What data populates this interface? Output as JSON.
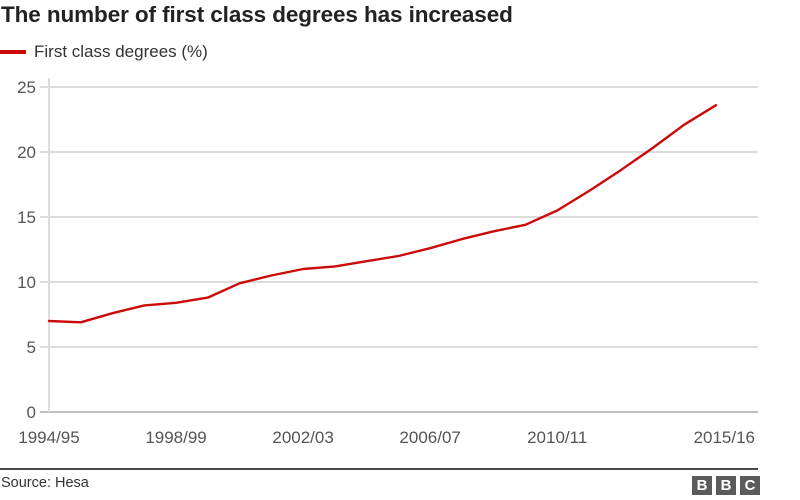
{
  "header": {
    "title": "The number of first class degrees has increased"
  },
  "legend": {
    "label": "First class degrees (%)",
    "color": "#cc0a0a"
  },
  "footer": {
    "source": "Source: Hesa",
    "logo_letters": [
      "B",
      "B",
      "C"
    ]
  },
  "colors": {
    "line": "#cc0a0a",
    "grid": "#dcdcdc",
    "axis": "#cccccc",
    "text": "#222222",
    "logo_block": "#5b5b5b"
  },
  "chart_data": {
    "type": "line",
    "title": "The number of first class degrees has increased",
    "xlabel": "",
    "ylabel": "",
    "ylim": [
      0,
      25
    ],
    "yticks": [
      0,
      5,
      10,
      15,
      20,
      25
    ],
    "grid": true,
    "legend_position": "top-left",
    "xtick_labels": [
      "1994/95",
      "1998/99",
      "2002/03",
      "2006/07",
      "2010/11",
      "2015/16"
    ],
    "x": [
      "1994/95",
      "1995/96",
      "1996/97",
      "1997/98",
      "1998/99",
      "1999/00",
      "2000/01",
      "2001/02",
      "2002/03",
      "2003/04",
      "2004/05",
      "2005/06",
      "2006/07",
      "2007/08",
      "2008/09",
      "2009/10",
      "2010/11",
      "2011/12",
      "2012/13",
      "2013/14",
      "2014/15",
      "2015/16"
    ],
    "series": [
      {
        "name": "First class degrees (%)",
        "color": "#cc0a0a",
        "values": [
          7.0,
          6.9,
          7.6,
          8.2,
          8.4,
          8.8,
          9.9,
          10.5,
          11.0,
          11.2,
          11.6,
          12.0,
          12.6,
          13.3,
          13.9,
          14.4,
          15.5,
          17.0,
          18.6,
          20.3,
          22.1,
          23.6
        ]
      }
    ],
    "source": "Source: Hesa"
  }
}
